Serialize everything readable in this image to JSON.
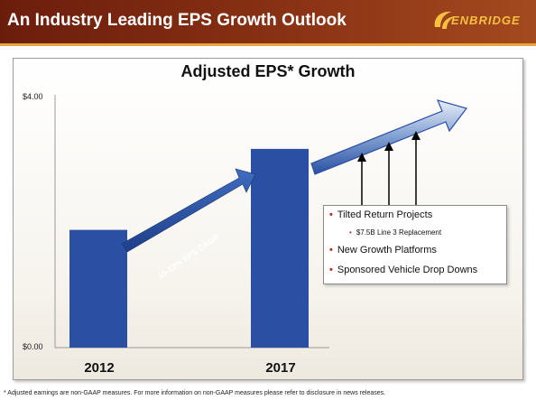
{
  "header": {
    "title": "An Industry Leading EPS Growth Outlook",
    "logo_text": "ENBRIDGE"
  },
  "colors": {
    "header_bg": "#7a2612",
    "accent_gold": "#e8a63a",
    "bar_blue": "#2a4fa3",
    "bullet_red": "#b8321e"
  },
  "chart_data": {
    "type": "bar",
    "title": "Adjusted EPS* Growth",
    "categories": [
      "2012",
      "2017"
    ],
    "values": [
      1.89,
      3.19
    ],
    "ylim": [
      0,
      4
    ],
    "ytick_labels": [
      "$4.00",
      "$0.00"
    ],
    "annotation": "10-12% EPS CAGR",
    "legend": "none",
    "grid": false
  },
  "callout": {
    "items": [
      {
        "label": "Tilted Return Projects"
      },
      {
        "label": "$7.5B Line 3 Replacement",
        "sub": true
      },
      {
        "label": "New Growth Platforms"
      },
      {
        "label": "Sponsored Vehicle Drop Downs"
      }
    ]
  },
  "footnote": "* Adjusted earnings are non-GAAP measures. For more information on non-GAAP measures please refer to disclosure in news releases."
}
